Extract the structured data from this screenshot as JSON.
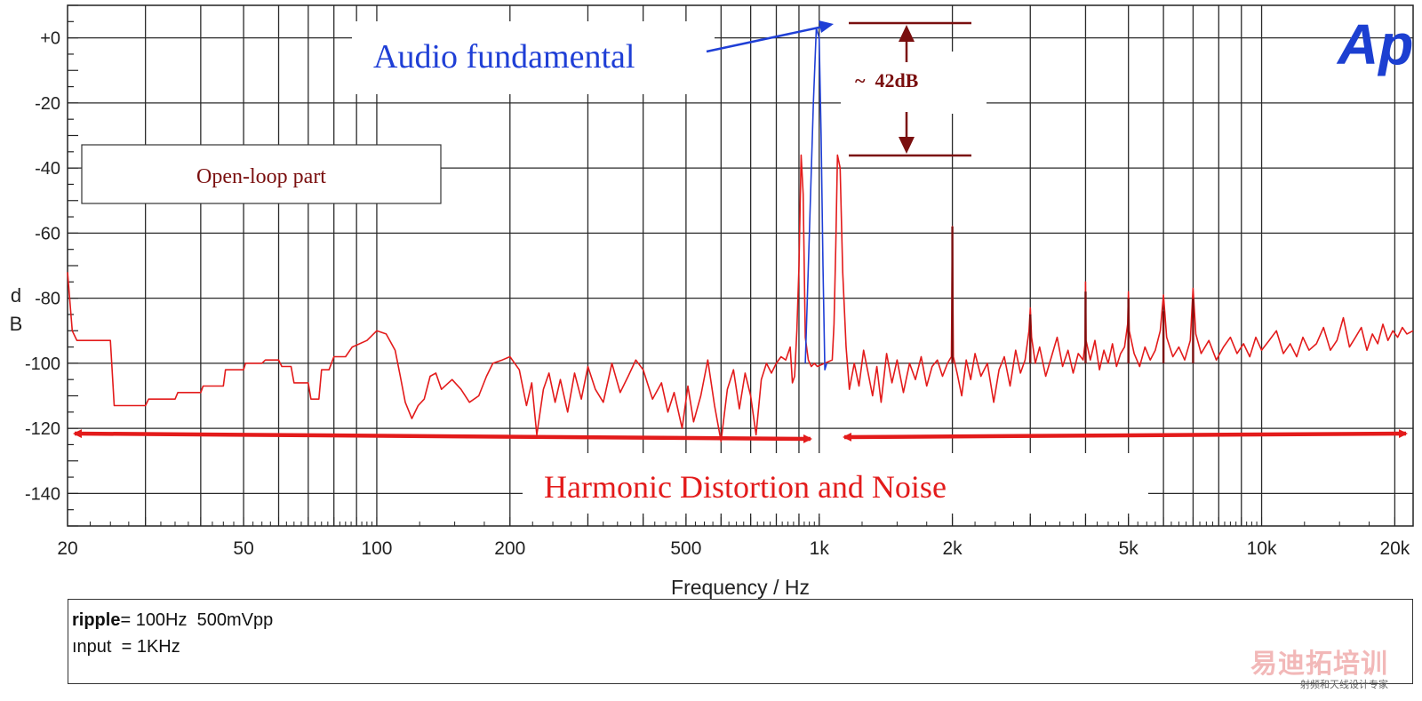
{
  "chart_data": {
    "type": "line",
    "title": "",
    "xlabel": "Frequency / Hz",
    "ylabel": "d B",
    "x_scale": "log",
    "xlim": [
      20,
      22000
    ],
    "ylim": [
      -150,
      10
    ],
    "grid": true,
    "x_ticks": [
      {
        "value": 20,
        "label": "20"
      },
      {
        "value": 50,
        "label": "50"
      },
      {
        "value": 100,
        "label": "100"
      },
      {
        "value": 200,
        "label": "200"
      },
      {
        "value": 500,
        "label": "500"
      },
      {
        "value": 1000,
        "label": "1k"
      },
      {
        "value": 2000,
        "label": "2k"
      },
      {
        "value": 5000,
        "label": "5k"
      },
      {
        "value": 10000,
        "label": "10k"
      },
      {
        "value": 20000,
        "label": "20k"
      }
    ],
    "y_ticks": [
      {
        "value": 0,
        "label": "+0"
      },
      {
        "value": -20,
        "label": "-20"
      },
      {
        "value": -40,
        "label": "-40"
      },
      {
        "value": -60,
        "label": "-60"
      },
      {
        "value": -80,
        "label": "-80"
      },
      {
        "value": -100,
        "label": "-100"
      },
      {
        "value": -120,
        "label": "-120"
      },
      {
        "value": -140,
        "label": "-140"
      }
    ],
    "series": [
      {
        "color": "#e31b1b",
        "points": [
          [
            20,
            -72
          ],
          [
            20.5,
            -90
          ],
          [
            21,
            -93
          ],
          [
            25,
            -93
          ],
          [
            25.5,
            -113
          ],
          [
            30,
            -113
          ],
          [
            30.5,
            -111
          ],
          [
            35,
            -111
          ],
          [
            35.5,
            -109
          ],
          [
            40,
            -109
          ],
          [
            40.5,
            -107
          ],
          [
            45,
            -107
          ],
          [
            45.5,
            -102
          ],
          [
            50,
            -102
          ],
          [
            50.5,
            -100
          ],
          [
            55,
            -100
          ],
          [
            56,
            -99
          ],
          [
            60,
            -99
          ],
          [
            61,
            -101
          ],
          [
            64,
            -101
          ],
          [
            65,
            -106
          ],
          [
            70,
            -106
          ],
          [
            71,
            -111
          ],
          [
            74,
            -111
          ],
          [
            75,
            -102
          ],
          [
            78,
            -102
          ],
          [
            80,
            -98
          ],
          [
            85,
            -98
          ],
          [
            88,
            -95
          ],
          [
            95,
            -93
          ],
          [
            100,
            -90
          ],
          [
            105,
            -91
          ],
          [
            110,
            -96
          ],
          [
            113,
            -104
          ],
          [
            116,
            -112
          ],
          [
            120,
            -117
          ],
          [
            124,
            -113
          ],
          [
            128,
            -111
          ],
          [
            132,
            -104
          ],
          [
            136,
            -103
          ],
          [
            140,
            -108
          ],
          [
            148,
            -105
          ],
          [
            155,
            -108
          ],
          [
            162,
            -112
          ],
          [
            170,
            -110
          ],
          [
            177,
            -104
          ],
          [
            183,
            -100
          ],
          [
            192,
            -99
          ],
          [
            200,
            -98
          ],
          [
            210,
            -102
          ],
          [
            218,
            -113
          ],
          [
            224,
            -106
          ],
          [
            230,
            -122
          ],
          [
            238,
            -108
          ],
          [
            245,
            -103
          ],
          [
            253,
            -112
          ],
          [
            260,
            -105
          ],
          [
            270,
            -115
          ],
          [
            280,
            -103
          ],
          [
            290,
            -111
          ],
          [
            300,
            -101
          ],
          [
            312,
            -108
          ],
          [
            325,
            -112
          ],
          [
            340,
            -100
          ],
          [
            355,
            -109
          ],
          [
            370,
            -104
          ],
          [
            385,
            -99
          ],
          [
            400,
            -102
          ],
          [
            420,
            -111
          ],
          [
            440,
            -106
          ],
          [
            455,
            -115
          ],
          [
            470,
            -109
          ],
          [
            490,
            -120
          ],
          [
            505,
            -107
          ],
          [
            520,
            -118
          ],
          [
            540,
            -110
          ],
          [
            560,
            -99
          ],
          [
            580,
            -113
          ],
          [
            600,
            -124
          ],
          [
            620,
            -108
          ],
          [
            640,
            -102
          ],
          [
            660,
            -114
          ],
          [
            680,
            -103
          ],
          [
            700,
            -110
          ],
          [
            720,
            -122
          ],
          [
            740,
            -105
          ],
          [
            760,
            -100
          ],
          [
            780,
            -103
          ],
          [
            800,
            -100
          ],
          [
            820,
            -98
          ],
          [
            840,
            -99
          ],
          [
            860,
            -95
          ],
          [
            870,
            -106
          ],
          [
            880,
            -104
          ],
          [
            890,
            -90
          ],
          [
            900,
            -70
          ],
          [
            910,
            -36
          ],
          [
            920,
            -48
          ],
          [
            930,
            -92
          ],
          [
            945,
            -99
          ],
          [
            960,
            -101
          ],
          [
            975,
            -100
          ],
          [
            990,
            -101
          ],
          [
            1070,
            -99
          ],
          [
            1080,
            -88
          ],
          [
            1090,
            -64
          ],
          [
            1100,
            -36
          ],
          [
            1115,
            -40
          ],
          [
            1130,
            -72
          ],
          [
            1150,
            -95
          ],
          [
            1170,
            -108
          ],
          [
            1200,
            -100
          ],
          [
            1230,
            -107
          ],
          [
            1260,
            -96
          ],
          [
            1290,
            -103
          ],
          [
            1320,
            -110
          ],
          [
            1350,
            -101
          ],
          [
            1380,
            -112
          ],
          [
            1420,
            -97
          ],
          [
            1460,
            -106
          ],
          [
            1500,
            -99
          ],
          [
            1550,
            -109
          ],
          [
            1600,
            -100
          ],
          [
            1650,
            -105
          ],
          [
            1700,
            -98
          ],
          [
            1750,
            -107
          ],
          [
            1800,
            -101
          ],
          [
            1850,
            -99
          ],
          [
            1900,
            -104
          ],
          [
            1950,
            -100
          ],
          [
            1990,
            -98
          ],
          [
            2000,
            -58
          ],
          [
            2010,
            -98
          ],
          [
            2050,
            -103
          ],
          [
            2100,
            -110
          ],
          [
            2150,
            -99
          ],
          [
            2200,
            -105
          ],
          [
            2250,
            -97
          ],
          [
            2320,
            -104
          ],
          [
            2400,
            -100
          ],
          [
            2480,
            -112
          ],
          [
            2550,
            -102
          ],
          [
            2620,
            -98
          ],
          [
            2700,
            -107
          ],
          [
            2780,
            -96
          ],
          [
            2850,
            -103
          ],
          [
            2920,
            -99
          ],
          [
            2980,
            -90
          ],
          [
            3000,
            -83
          ],
          [
            3020,
            -92
          ],
          [
            3080,
            -100
          ],
          [
            3150,
            -95
          ],
          [
            3250,
            -104
          ],
          [
            3350,
            -98
          ],
          [
            3450,
            -92
          ],
          [
            3550,
            -101
          ],
          [
            3650,
            -96
          ],
          [
            3750,
            -103
          ],
          [
            3850,
            -97
          ],
          [
            3950,
            -99
          ],
          [
            3990,
            -94
          ],
          [
            4000,
            -75
          ],
          [
            4010,
            -93
          ],
          [
            4100,
            -99
          ],
          [
            4200,
            -93
          ],
          [
            4300,
            -102
          ],
          [
            4400,
            -96
          ],
          [
            4500,
            -100
          ],
          [
            4600,
            -94
          ],
          [
            4700,
            -101
          ],
          [
            4800,
            -97
          ],
          [
            4900,
            -95
          ],
          [
            4980,
            -88
          ],
          [
            5000,
            -78
          ],
          [
            5020,
            -90
          ],
          [
            5150,
            -97
          ],
          [
            5300,
            -101
          ],
          [
            5450,
            -95
          ],
          [
            5600,
            -99
          ],
          [
            5750,
            -96
          ],
          [
            5900,
            -90
          ],
          [
            6000,
            -79
          ],
          [
            6100,
            -92
          ],
          [
            6300,
            -98
          ],
          [
            6500,
            -95
          ],
          [
            6700,
            -99
          ],
          [
            6900,
            -93
          ],
          [
            7000,
            -77
          ],
          [
            7100,
            -91
          ],
          [
            7300,
            -97
          ],
          [
            7600,
            -93
          ],
          [
            7900,
            -99
          ],
          [
            8200,
            -95
          ],
          [
            8500,
            -92
          ],
          [
            8800,
            -97
          ],
          [
            9100,
            -94
          ],
          [
            9400,
            -98
          ],
          [
            9700,
            -92
          ],
          [
            10000,
            -96
          ],
          [
            10400,
            -93
          ],
          [
            10800,
            -90
          ],
          [
            11200,
            -97
          ],
          [
            11600,
            -94
          ],
          [
            12000,
            -98
          ],
          [
            12400,
            -92
          ],
          [
            12800,
            -96
          ],
          [
            13300,
            -94
          ],
          [
            13800,
            -89
          ],
          [
            14300,
            -96
          ],
          [
            14800,
            -93
          ],
          [
            15300,
            -86
          ],
          [
            15800,
            -95
          ],
          [
            16300,
            -92
          ],
          [
            16800,
            -89
          ],
          [
            17300,
            -96
          ],
          [
            17800,
            -91
          ],
          [
            18300,
            -94
          ],
          [
            18800,
            -88
          ],
          [
            19300,
            -93
          ],
          [
            19800,
            -90
          ],
          [
            20300,
            -92
          ],
          [
            20800,
            -89
          ],
          [
            21300,
            -91
          ],
          [
            22000,
            -90
          ]
        ]
      },
      {
        "color": "#1f3fd6",
        "points": [
          [
            930,
            -100
          ],
          [
            950,
            -60
          ],
          [
            970,
            -20
          ],
          [
            985,
            3
          ],
          [
            1000,
            0
          ],
          [
            1010,
            -30
          ],
          [
            1020,
            -70
          ],
          [
            1030,
            -102
          ],
          [
            1040,
            -100
          ]
        ]
      }
    ],
    "impulses": [
      {
        "x": 2000,
        "y": -58,
        "color": "#7a0f0f"
      },
      {
        "x": 3000,
        "y": -85,
        "color": "#7a0f0f"
      },
      {
        "x": 4000,
        "y": -78,
        "color": "#7a0f0f"
      },
      {
        "x": 5000,
        "y": -80,
        "color": "#7a0f0f"
      },
      {
        "x": 6000,
        "y": -84,
        "color": "#7a0f0f"
      },
      {
        "x": 7000,
        "y": -80,
        "color": "#7a0f0f"
      }
    ],
    "annotations": {
      "fundamental_label": "Audio fundamental",
      "level_label": "~  42dB",
      "open_loop_label": "Open-loop part",
      "distortion_label": "Harmonic Distortion and Noise",
      "fundamental_color": "#1f3fd6",
      "level_color": "#7a0f0f",
      "open_loop_color": "#7a0f0f",
      "distortion_color": "#e31b1b"
    },
    "legend": {
      "line1_key": "ripple",
      "line1_value": "= 100Hz  500mVpp",
      "line2": "ınput  = 1KHz"
    }
  },
  "logo": {
    "text": "Ap",
    "color": "#1c3fd1"
  },
  "watermark": {
    "main": "易迪拓培训",
    "sub": "射频和天线设计专家"
  }
}
